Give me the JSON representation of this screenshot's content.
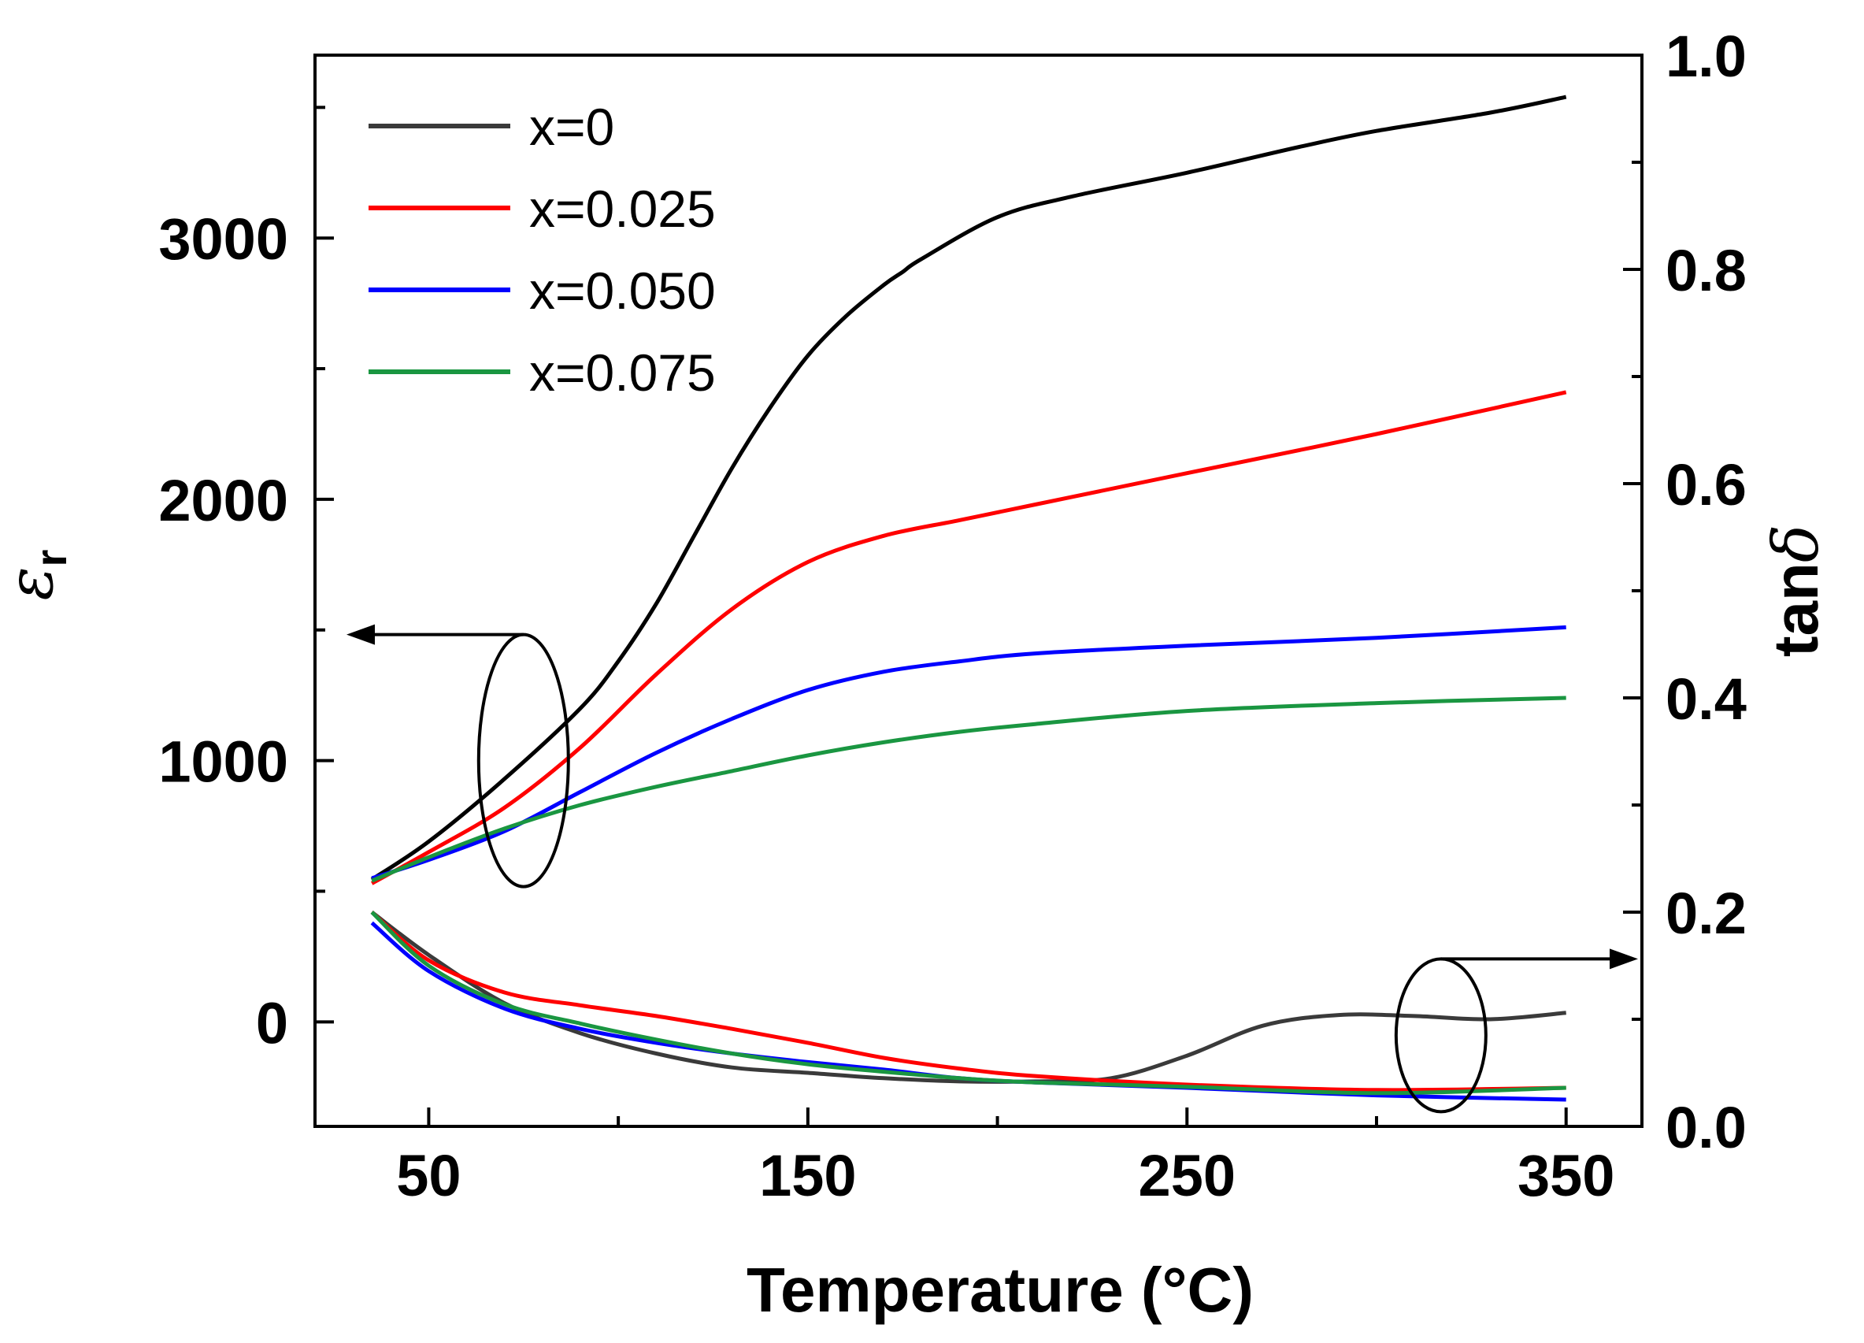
{
  "chart_data": {
    "type": "line",
    "title": "",
    "xlabel": "Temperature (°C)",
    "ylabel_left": {
      "symbol": "ε",
      "subscript": "r"
    },
    "ylabel_right": {
      "prefix": "tan",
      "symbol": "δ"
    },
    "xlim": [
      20,
      370
    ],
    "ylim_left": [
      -400,
      3700
    ],
    "ylim_right": [
      0.0,
      1.0
    ],
    "x_ticks": [
      "50",
      "150",
      "250",
      "350"
    ],
    "y_left_ticks": [
      "0",
      "1000",
      "2000",
      "3000"
    ],
    "y_right_ticks": [
      "0.0",
      "0.2",
      "0.4",
      "0.6",
      "0.8",
      "1.0"
    ],
    "legend_position": "top-left",
    "series": [
      {
        "name": "x=0",
        "color": "#000000",
        "tan_color": "#3a3a3a",
        "permittivity": {
          "x": [
            35,
            50,
            70,
            90,
            100,
            110,
            120,
            130,
            140,
            150,
            160,
            170,
            175,
            180,
            200,
            220,
            250,
            280,
            300,
            330,
            350
          ],
          "y": [
            545,
            690,
            930,
            1200,
            1380,
            1600,
            1860,
            2120,
            2350,
            2550,
            2700,
            2820,
            2870,
            2920,
            3080,
            3160,
            3250,
            3350,
            3410,
            3480,
            3540
          ]
        },
        "tan_delta": {
          "x": [
            35,
            50,
            70,
            90,
            110,
            130,
            150,
            170,
            190,
            210,
            230,
            250,
            270,
            290,
            310,
            330,
            350
          ],
          "y": [
            0.2,
            0.16,
            0.115,
            0.087,
            0.068,
            0.055,
            0.05,
            0.045,
            0.042,
            0.042,
            0.045,
            0.066,
            0.094,
            0.104,
            0.103,
            0.1,
            0.106
          ]
        }
      },
      {
        "name": "x=0.025",
        "color": "#ff0000",
        "permittivity": {
          "x": [
            35,
            50,
            70,
            90,
            110,
            130,
            150,
            170,
            190,
            210,
            250,
            300,
            350
          ],
          "y": [
            530,
            650,
            820,
            1050,
            1330,
            1580,
            1760,
            1860,
            1920,
            1980,
            2100,
            2250,
            2410
          ]
        },
        "tan_delta": {
          "x": [
            35,
            50,
            70,
            90,
            110,
            130,
            150,
            170,
            190,
            210,
            250,
            300,
            350
          ],
          "y": [
            0.2,
            0.155,
            0.125,
            0.113,
            0.103,
            0.091,
            0.078,
            0.064,
            0.054,
            0.047,
            0.039,
            0.034,
            0.036
          ]
        }
      },
      {
        "name": "x=0.050",
        "color": "#0000ff",
        "permittivity": {
          "x": [
            35,
            50,
            70,
            90,
            110,
            130,
            150,
            170,
            190,
            210,
            250,
            300,
            350
          ],
          "y": [
            550,
            620,
            730,
            880,
            1030,
            1160,
            1270,
            1340,
            1380,
            1410,
            1440,
            1470,
            1510
          ]
        },
        "tan_delta": {
          "x": [
            35,
            50,
            70,
            90,
            110,
            130,
            150,
            170,
            190,
            210,
            250,
            300,
            350
          ],
          "y": [
            0.19,
            0.145,
            0.11,
            0.091,
            0.078,
            0.068,
            0.06,
            0.053,
            0.045,
            0.041,
            0.036,
            0.029,
            0.025
          ]
        }
      },
      {
        "name": "x=0.075",
        "color": "#1a9641",
        "permittivity": {
          "x": [
            35,
            50,
            70,
            90,
            110,
            130,
            150,
            170,
            190,
            210,
            250,
            300,
            350
          ],
          "y": [
            540,
            630,
            740,
            830,
            900,
            960,
            1020,
            1070,
            1110,
            1140,
            1190,
            1220,
            1240
          ]
        },
        "tan_delta": {
          "x": [
            35,
            50,
            70,
            90,
            110,
            130,
            150,
            170,
            190,
            210,
            250,
            300,
            350
          ],
          "y": [
            0.2,
            0.15,
            0.114,
            0.096,
            0.081,
            0.068,
            0.058,
            0.051,
            0.045,
            0.041,
            0.037,
            0.031,
            0.036
          ]
        }
      }
    ],
    "annotations": [
      {
        "type": "ellipse-arrow",
        "target_axis": "left",
        "direction": "left"
      },
      {
        "type": "ellipse-arrow",
        "target_axis": "right",
        "direction": "right"
      }
    ]
  }
}
